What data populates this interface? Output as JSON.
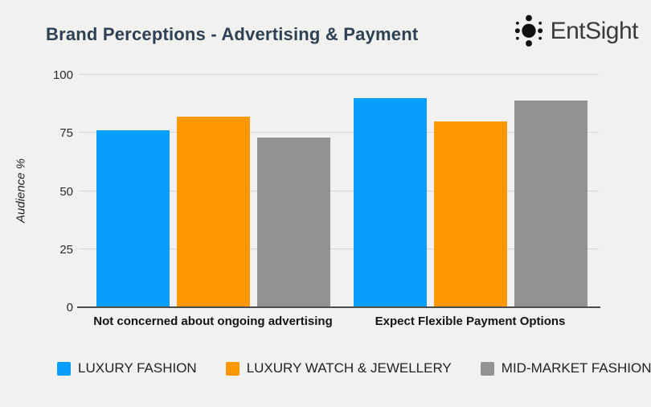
{
  "title": "Brand Perceptions - Advertising & Payment",
  "logo": {
    "text": "EntSight"
  },
  "colors": {
    "background": "#f1f1f0",
    "title_text": "#2e4154",
    "logo_text": "#3b3b3b",
    "axis_text": "#2b2b2b",
    "gridline": "#d7d7d6",
    "baseline": "#4d4d4d",
    "series_blue": "#099efb",
    "series_orange": "#ff9800",
    "series_gray": "#929292"
  },
  "chart_data": {
    "type": "bar",
    "title": "Brand Perceptions - Advertising & Payment",
    "xlabel": "",
    "ylabel": "Audience %",
    "ylim": [
      0,
      100
    ],
    "yticks": [
      0,
      25,
      50,
      75,
      100
    ],
    "grid": true,
    "legend_position": "bottom",
    "categories": [
      "Not concerned about ongoing advertising",
      "Expect Flexible Payment Options"
    ],
    "series": [
      {
        "name": "LUXURY FASHION",
        "color": "#099efb",
        "values": [
          76,
          90
        ]
      },
      {
        "name": "LUXURY WATCH & JEWELLERY",
        "color": "#ff9800",
        "values": [
          82,
          80
        ]
      },
      {
        "name": "MID-MARKET FASHION",
        "color": "#929292",
        "values": [
          73,
          89
        ]
      }
    ]
  }
}
